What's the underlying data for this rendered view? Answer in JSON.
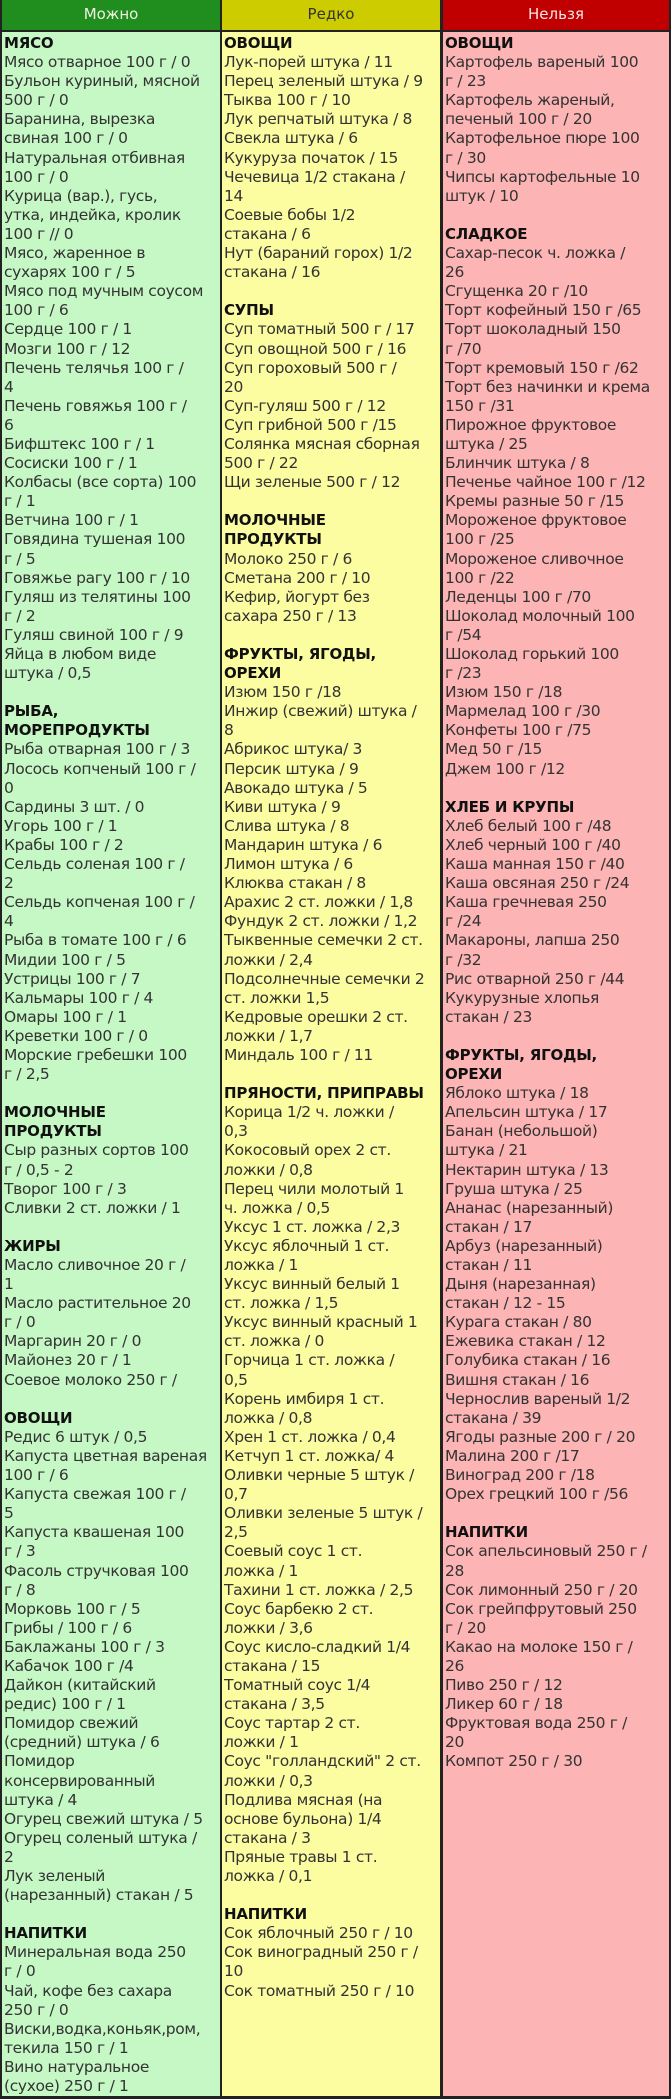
{
  "headers": {
    "allowed": "Можно",
    "rarely": "Редко",
    "forbidden": "Нельзя"
  },
  "colors": {
    "allowed_header": "#1f8e1f",
    "allowed_bg": "#c6f8c6",
    "rarely_header": "#cccc00",
    "rarely_bg": "#fcfca0",
    "forbidden_header": "#c00000",
    "forbidden_bg": "#fcb4b4"
  },
  "allowed": {
    "meat": {
      "title": "МЯСО",
      "lines": [
        "Мясо отварное 100 г / 0",
        "Бульон куриный, мясной",
        "500 г / 0",
        "Баранина, вырезка",
        "свиная 100 г / 0",
        "Натуральная отбивная",
        "100 г / 0",
        "Курица (вар.), гусь,",
        "утка, индейка, кролик",
        "100 г // 0",
        "Мясо, жаренное в",
        "сухарях 100 г / 5",
        "Мясо под мучным соусом",
        "100 г / 6",
        "Сердце 100 г / 1",
        "Мозги 100 г / 12",
        "Печень телячья 100 г /",
        "4",
        "Печень говяжья 100 г /",
        "6",
        "Бифштекс 100 г / 1",
        "Сосиски 100 г / 1",
        "Колбасы (все сорта) 100",
        "г / 1",
        "Ветчина 100 г / 1",
        "Говядина тушеная 100",
        "г / 5",
        "Говяжье рагу 100 г / 10",
        "Гуляш из телятины 100",
        "г / 2",
        "Гуляш свиной 100 г / 9",
        "Яйца в любом виде",
        "штука / 0,5"
      ]
    },
    "fish": {
      "title_1": "РЫБА,",
      "title_2": "МОРЕПРОДУКТЫ",
      "lines": [
        "Рыба отварная 100 г / 3",
        "Лосось копченый 100 г /",
        "0",
        "Сардины 3 шт. / 0",
        "Угорь 100 г / 1",
        "Крабы 100 г / 2",
        "Сельдь соленая 100 г /",
        "2",
        "Сельдь копченая 100 г /",
        "4",
        "Рыба в томате 100 г / 6",
        "Мидии 100 г / 5",
        "Устрицы 100 г / 7",
        "Кальмары 100 г / 4",
        "Омары 100 г / 1",
        "Креветки 100 г / 0",
        "Морские гребешки 100",
        "г / 2,5"
      ]
    },
    "dairy": {
      "title_1": "МОЛОЧНЫЕ",
      "title_2": "ПРОДУКТЫ",
      "lines": [
        "Сыр разных сортов 100",
        "г / 0,5 - 2",
        "Творог 100 г / 3",
        "Сливки 2 ст. ложки / 1"
      ]
    },
    "fats": {
      "title": "ЖИРЫ",
      "lines": [
        "Масло сливочное 20 г /",
        "1",
        "Масло растительное 20",
        "г / 0",
        "Маргарин 20 г / 0",
        "Майонез 20 г / 1",
        "Соевое молоко 250 г /"
      ]
    },
    "vegetables": {
      "title": "ОВОЩИ",
      "lines": [
        "Редис 6 штук / 0,5",
        "Капуста цветная вареная",
        "100 г / 6",
        "Капуста свежая 100 г /",
        "5",
        "Капуста квашеная 100",
        "г / 3",
        "Фасоль стручковая 100",
        "г / 8",
        "Морковь 100 г / 5",
        "Грибы / 100 г / 6",
        "Баклажаны 100 г / 3",
        "Кабачок 100 г /4",
        "Дайкон (китайский",
        "редис) 100 г / 1",
        "Помидор свежий",
        "(средний) штука / 6",
        "Помидор",
        "консервированный",
        "штука / 4",
        "Огурец свежий штука / 5",
        "Огурец соленый штука /",
        "2",
        "Лук зеленый",
        "(нарезанный) стакан / 5"
      ]
    },
    "drinks": {
      "title": "НАПИТКИ",
      "lines": [
        "Минеральная вода 250",
        "г / 0",
        "Чай, кофе без сахара",
        "250 г / 0",
        "Виски,водка,коньяк,ром,",
        "текила 150 г / 1",
        "Вино натуральное",
        "(сухое) 250 г / 1"
      ]
    }
  },
  "rarely": {
    "vegetables": {
      "title": "ОВОЩИ",
      "lines": [
        "Лук-порей штука / 11",
        "Перец зеленый штука / 9",
        "Тыква 100 г / 10",
        "Лук репчатый штука / 8",
        "Свекла штука / 6",
        "Кукуруза початок / 15",
        "Чечевица 1/2 стакана /",
        "14",
        "Соевые бобы 1/2",
        "стакана / 6",
        "Нут (бараний горох) 1/2",
        "стакана / 16"
      ]
    },
    "soups": {
      "title": "СУПЫ",
      "lines": [
        "Суп томатный 500 г / 17",
        "Суп овощной 500 г / 16",
        "Суп гороховый 500 г /",
        "20",
        "Суп-гуляш 500 г / 12",
        "Суп грибной 500 г /15",
        "Солянка мясная сборная",
        "500 г / 22",
        "Щи зеленые 500 г / 12"
      ]
    },
    "dairy": {
      "title_1": "МОЛОЧНЫЕ",
      "title_2": "ПРОДУКТЫ",
      "lines": [
        "Молоко 250 г / 6",
        "Сметана 200 г / 10",
        "Кефир, йогурт без",
        "сахара 250 г / 13"
      ]
    },
    "fruits": {
      "title_1": "ФРУКТЫ, ЯГОДЫ,",
      "title_2": "ОРЕХИ",
      "lines": [
        "Изюм 150 г /18",
        "Инжир (свежий) штука /",
        "8",
        "Абрикос штука/ 3",
        "Персик штука / 9",
        "Авокадо штука / 5",
        "Киви штука / 9",
        "Слива штука / 8",
        "Мандарин штука / 6",
        "Лимон штука / 6",
        "Клюква стакан / 8",
        "Арахис 2 ст. ложки / 1,8",
        "Фундук 2 ст. ложки / 1,2",
        "Тыквенные семечки 2 ст.",
        "ложки / 2,4",
        "Подсолнечные семечки 2",
        "ст. ложки 1,5",
        "Кедровые орешки 2 ст.",
        "ложки / 1,7",
        "Миндаль 100 г / 11"
      ]
    },
    "spices": {
      "title": "ПРЯНОСТИ, ПРИПРАВЫ",
      "lines": [
        "Корица 1/2 ч. ложки /",
        "0,3",
        "Кокосовый орех 2 ст.",
        "ложки / 0,8",
        "Перец чили молотый 1",
        "ч. ложка / 0,5",
        "Уксус 1 ст. ложка / 2,3",
        "Уксус яблочный 1 ст.",
        "ложка / 1",
        "Уксус винный белый 1",
        "ст. ложка / 1,5",
        "Уксус винный красный 1",
        "ст. ложка / 0",
        "Горчица 1 ст. ложка /",
        "0,5",
        "Корень имбиря 1 ст.",
        "ложка / 0,8",
        "Хрен 1 ст. ложка / 0,4",
        "Кетчуп 1 ст. ложка/ 4",
        "Оливки черные 5 штук /",
        "0,7",
        "Оливки зеленые 5 штук /",
        "2,5",
        "Соевый соус 1 ст.",
        "ложка / 1",
        "Тахини 1 ст. ложка / 2,5",
        "Соус барбекю 2 ст.",
        "ложки / 3,6",
        "Соус кисло-сладкий 1/4",
        "стакана / 15",
        "Томатный соус 1/4",
        "стакана / 3,5",
        "Соус тартар 2 ст.",
        "ложки / 1",
        "Соус \"голландский\" 2 ст.",
        "ложки / 0,3",
        "Подлива мясная (на",
        "основе бульона) 1/4",
        "стакана / 3",
        "Пряные травы 1 ст.",
        "ложка / 0,1"
      ]
    },
    "drinks": {
      "title": "НАПИТКИ",
      "lines": [
        "Сок яблочный 250 г / 10",
        "Сок виноградный 250 г /",
        "10",
        "Сок томатный 250 г / 10"
      ]
    }
  },
  "forbidden": {
    "vegetables": {
      "title": "ОВОЩИ",
      "lines": [
        "Картофель вареный 100",
        "г / 23",
        "Картофель жареный,",
        "печеный 100 г / 20",
        "Картофельное пюре 100",
        "г / 30",
        "Чипсы картофельные 10",
        "штук / 10"
      ]
    },
    "sweets": {
      "title": "СЛАДКОЕ",
      "lines": [
        "Сахар-песок ч. ложка /",
        "26",
        "Сгущенка 20 г /10",
        "Торт кофейный 150 г /65",
        "Торт шоколадный 150",
        "г /70",
        "Торт кремовый 150 г /62",
        "Торт без начинки и крема",
        "150 г /31",
        "Пирожное фруктовое",
        "штука / 25",
        "Блинчик штука / 8",
        "Печенье чайное 100 г /12",
        "Кремы разные 50 г /15",
        "Мороженое фруктовое",
        "100 г /25",
        "Мороженое сливочное",
        "100 г /22",
        "Леденцы 100 г /70",
        "Шоколад молочный 100",
        "г /54",
        "Шоколад горький 100",
        "г /23",
        "Изюм 150 г /18",
        "Мармелад 100 г /30",
        "Конфеты 100 г /75",
        "Мед 50 г /15",
        "Джем 100 г /12"
      ]
    },
    "bread": {
      "title": "ХЛЕБ И КРУПЫ",
      "lines": [
        "Хлеб белый 100 г /48",
        "Хлеб черный 100 г /40",
        "Каша манная 150 г /40",
        "Каша овсяная 250 г /24",
        "Каша гречневая 250",
        "г /24",
        "Макароны, лапша 250",
        "г /32",
        "Рис отварной 250 г /44",
        "Кукурузные хлопья",
        "стакан / 23"
      ]
    },
    "fruits": {
      "title_1": "ФРУКТЫ, ЯГОДЫ,",
      "title_2": "ОРЕХИ",
      "lines": [
        "Яблоко штука / 18",
        "Апельсин штука / 17",
        "Банан (небольшой)",
        "штука / 21",
        "Нектарин штука / 13",
        "Груша штука / 25",
        "Ананас (нарезанный)",
        "стакан / 17",
        "Арбуз (нарезанный)",
        "стакан / 11",
        "Дыня (нарезанная)",
        "стакан / 12 - 15",
        "Курага стакан / 80",
        "Ежевика стакан / 12",
        "Голубика стакан / 16",
        "Вишня стакан / 16",
        "Чернослив вареный 1/2",
        "стакана / 39",
        "Ягоды разные 200 г / 20",
        "Малина 200 г /17",
        "Виноград 200 г /18",
        "Орех грецкий 100 г /56"
      ]
    },
    "drinks": {
      "title": "НАПИТКИ",
      "lines": [
        "Сок апельсиновый 250 г /",
        "28",
        "Сок лимонный 250 г / 20",
        "Сок грейпфрутовый 250",
        "г / 20",
        "Какао на молоке 150 г /",
        "26",
        "Пиво 250 г / 12",
        "Ликер 60 г / 18",
        "Фруктовая вода 250 г /",
        "20",
        "Компот 250 г / 30"
      ]
    }
  }
}
